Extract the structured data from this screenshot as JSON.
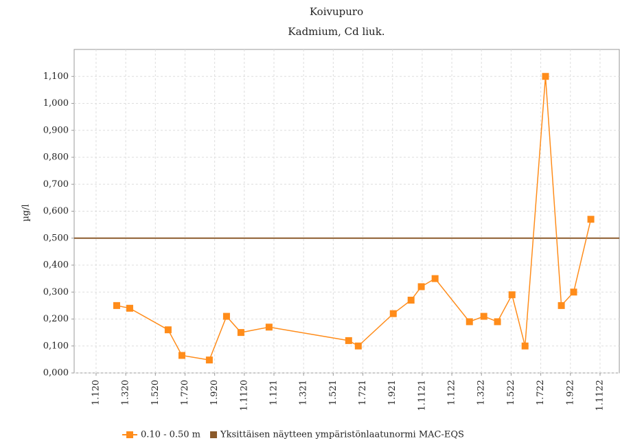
{
  "chart_data": {
    "type": "line",
    "title": "Koivupuro",
    "subtitle": "Kadmium, Cd liuk.",
    "y_label": "µg/l",
    "grid": true,
    "legend": "bottom",
    "xlim": [
      -1.48,
      35.3
    ],
    "xticks": [
      {
        "value": 0,
        "label": "1.120"
      },
      {
        "value": 2,
        "label": "1.320"
      },
      {
        "value": 4,
        "label": "1.520"
      },
      {
        "value": 6,
        "label": "1.720"
      },
      {
        "value": 8,
        "label": "1.920"
      },
      {
        "value": 10,
        "label": "1.1120"
      },
      {
        "value": 12,
        "label": "1.121"
      },
      {
        "value": 14,
        "label": "1.321"
      },
      {
        "value": 16,
        "label": "1.521"
      },
      {
        "value": 18,
        "label": "1.721"
      },
      {
        "value": 20,
        "label": "1.921"
      },
      {
        "value": 22,
        "label": "1.1121"
      },
      {
        "value": 24,
        "label": "1.122"
      },
      {
        "value": 26,
        "label": "1.322"
      },
      {
        "value": 28,
        "label": "1.522"
      },
      {
        "value": 30,
        "label": "1.722"
      },
      {
        "value": 32,
        "label": "1.922"
      },
      {
        "value": 34,
        "label": "1.1122"
      }
    ],
    "ylim": [
      0,
      1.2
    ],
    "yticks": [
      {
        "value": 0,
        "label": "0,000"
      },
      {
        "value": 0.1,
        "label": "0,100"
      },
      {
        "value": 0.2,
        "label": "0,200"
      },
      {
        "value": 0.3,
        "label": "0,300"
      },
      {
        "value": 0.4,
        "label": "0,400"
      },
      {
        "value": 0.5,
        "label": "0,500"
      },
      {
        "value": 0.6,
        "label": "0,600"
      },
      {
        "value": 0.7,
        "label": "0,700"
      },
      {
        "value": 0.8,
        "label": "0,800"
      },
      {
        "value": 0.9,
        "label": "0,900"
      },
      {
        "value": 1.0,
        "label": "1,000"
      },
      {
        "value": 1.1,
        "label": "1,100"
      }
    ],
    "x": [
      1.39,
      2.27,
      4.86,
      5.79,
      7.64,
      8.8,
      9.77,
      11.67,
      17.04,
      17.69,
      20.05,
      21.25,
      21.94,
      22.87,
      25.19,
      26.16,
      27.08,
      28.06,
      28.94,
      30.32,
      31.39,
      32.22,
      33.38
    ],
    "series": [
      {
        "name": "0.10 - 0.50 m",
        "color": "#ff8c1a",
        "values": [
          0.25,
          0.24,
          0.16,
          0.065,
          0.048,
          0.21,
          0.15,
          0.17,
          0.12,
          0.1,
          0.22,
          0.27,
          0.32,
          0.35,
          0.19,
          0.21,
          0.19,
          0.29,
          0.1,
          1.1,
          0.25,
          0.3,
          0.57
        ]
      }
    ],
    "reference_lines": [
      {
        "name": "Yksittäisen näytteen ympäristönlaatunormi MAC-EQS",
        "value": 0.5,
        "color": "#8b5a2b"
      }
    ]
  }
}
